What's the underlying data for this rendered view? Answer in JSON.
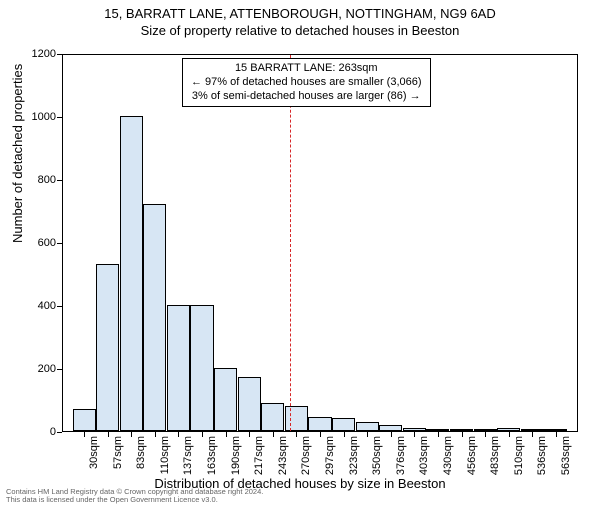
{
  "title_main": "15, BARRATT LANE, ATTENBOROUGH, NOTTINGHAM, NG9 6AD",
  "title_sub": "Size of property relative to detached houses in Beeston",
  "ylabel": "Number of detached properties",
  "xlabel": "Distribution of detached houses by size in Beeston",
  "chart": {
    "type": "histogram",
    "bar_fill": "#d7e6f4",
    "bar_stroke": "#000000",
    "background": "#ffffff",
    "frame_color": "#000000",
    "ylim": [
      0,
      1200
    ],
    "ytick_step": 200,
    "categories": [
      "30sqm",
      "57sqm",
      "83sqm",
      "110sqm",
      "137sqm",
      "163sqm",
      "190sqm",
      "217sqm",
      "243sqm",
      "270sqm",
      "297sqm",
      "323sqm",
      "350sqm",
      "376sqm",
      "403sqm",
      "430sqm",
      "456sqm",
      "483sqm",
      "510sqm",
      "536sqm",
      "563sqm"
    ],
    "values": [
      70,
      530,
      1000,
      720,
      400,
      400,
      200,
      170,
      90,
      80,
      45,
      40,
      30,
      20,
      8,
      6,
      5,
      4,
      8,
      3,
      2
    ],
    "marker": {
      "value_sqm": 263,
      "bin_index_after": 9,
      "fraction_into_bin": 0.74,
      "color": "#d62728",
      "dash": true
    }
  },
  "annotation": {
    "line1": "15 BARRATT LANE: 263sqm",
    "line2": "← 97% of detached houses are smaller (3,066)",
    "line3": "3% of semi-detached houses are larger (86) →",
    "border_color": "#000000",
    "background": "#ffffff",
    "fontsize": 11
  },
  "footer": {
    "line1": "Contains HM Land Registry data © Crown copyright and database right 2024.",
    "line2": "This data is licensed under the Open Government Licence v3.0.",
    "color": "#666666"
  }
}
